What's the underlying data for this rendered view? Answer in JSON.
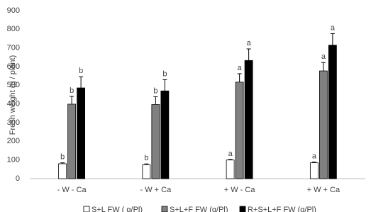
{
  "chart_data": {
    "type": "bar",
    "y_label": "Fresh weight  (g / plant)",
    "categories": [
      "- W - Ca",
      "- W + Ca",
      "+ W - Ca",
      "+ W + Ca"
    ],
    "series": [
      {
        "name": "S+L  FW ( g/Pl)",
        "color": "#ffffff",
        "values": [
          80,
          75,
          100,
          85
        ],
        "errors": [
          5,
          4,
          3,
          4
        ],
        "letters": [
          "b",
          "b",
          "a",
          "a"
        ]
      },
      {
        "name": "S+L+F  FW (g/Pl)",
        "color": "#808080",
        "values": [
          399,
          397,
          517,
          577
        ],
        "errors": [
          42,
          42,
          45,
          45
        ],
        "letters": [
          "b",
          "b",
          "a",
          "a"
        ]
      },
      {
        "name": "R+S+L+F  FW (g/Pl)",
        "color": "#000000",
        "values": [
          486,
          470,
          633,
          715
        ],
        "errors": [
          60,
          60,
          62,
          62
        ],
        "letters": [
          "b",
          "b",
          "a",
          "a"
        ]
      }
    ],
    "ylim": [
      0,
      900
    ],
    "yticks": [
      0,
      100,
      200,
      300,
      400,
      500,
      600,
      700,
      800,
      900
    ],
    "grid": false
  }
}
